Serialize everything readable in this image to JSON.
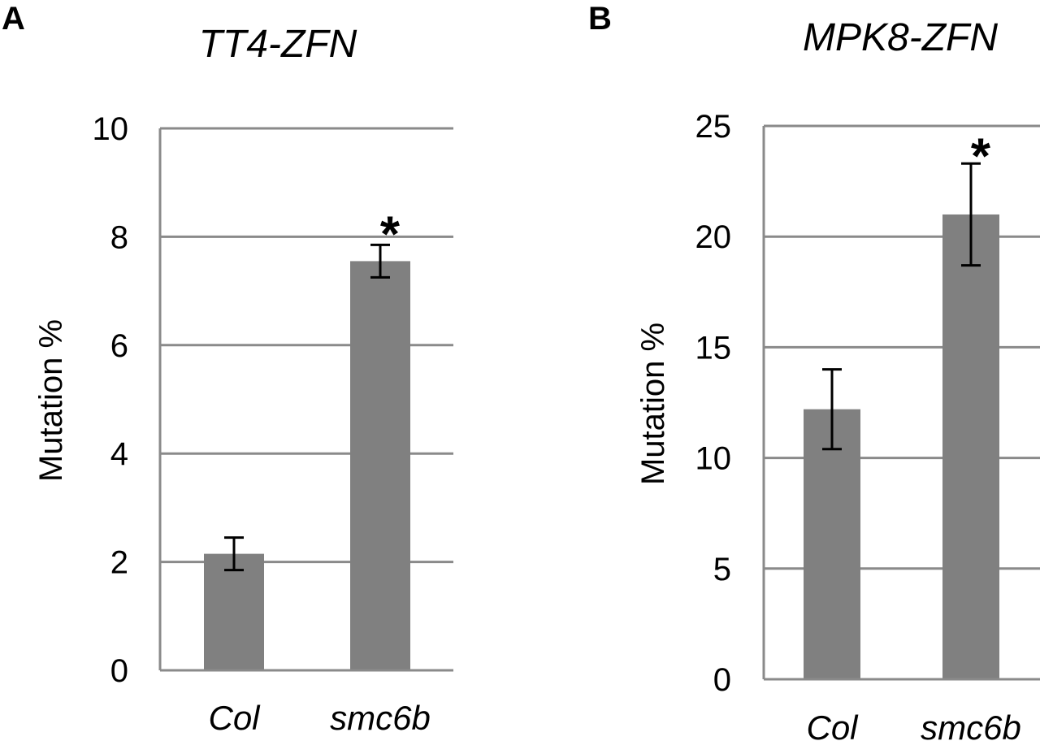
{
  "chart_data": [
    {
      "panel": "A",
      "type": "bar",
      "title": "TT4-ZFN",
      "ylabel": "Mutation %",
      "xlabel": "",
      "categories": [
        "Col",
        "smc6b"
      ],
      "values": [
        2.15,
        7.55
      ],
      "error": [
        0.3,
        0.3
      ],
      "significance": [
        "",
        "*"
      ],
      "ylim": [
        0,
        10
      ],
      "yticks": [
        0,
        2,
        4,
        6,
        8,
        10
      ],
      "grid": true,
      "colors": {
        "bar": "#808080",
        "grid": "#8a8a8a",
        "error": "#000000"
      }
    },
    {
      "panel": "B",
      "type": "bar",
      "title": "MPK8-ZFN",
      "ylabel": "Mutation %",
      "xlabel": "",
      "categories": [
        "Col",
        "smc6b"
      ],
      "values": [
        12.2,
        21.0
      ],
      "error": [
        1.8,
        2.3
      ],
      "significance": [
        "",
        "*"
      ],
      "ylim": [
        0,
        25
      ],
      "yticks": [
        0,
        5,
        10,
        15,
        20,
        25
      ],
      "grid": true,
      "colors": {
        "bar": "#808080",
        "grid": "#8a8a8a",
        "error": "#000000"
      }
    }
  ]
}
